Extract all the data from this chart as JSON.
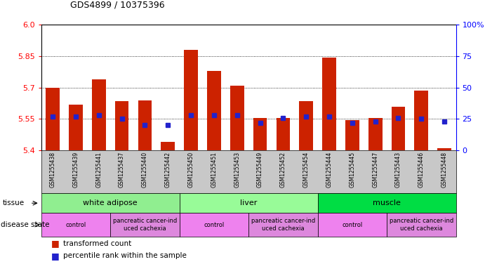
{
  "title": "GDS4899 / 10375396",
  "samples": [
    "GSM1255438",
    "GSM1255439",
    "GSM1255441",
    "GSM1255437",
    "GSM1255440",
    "GSM1255442",
    "GSM1255450",
    "GSM1255451",
    "GSM1255453",
    "GSM1255449",
    "GSM1255452",
    "GSM1255454",
    "GSM1255444",
    "GSM1255445",
    "GSM1255447",
    "GSM1255443",
    "GSM1255446",
    "GSM1255448"
  ],
  "red_values": [
    5.7,
    5.62,
    5.74,
    5.635,
    5.64,
    5.44,
    5.88,
    5.78,
    5.71,
    5.555,
    5.555,
    5.635,
    5.845,
    5.545,
    5.555,
    5.61,
    5.685,
    5.41
  ],
  "blue_values": [
    27,
    27,
    28,
    25,
    20,
    20,
    28,
    28,
    28,
    22,
    26,
    27,
    27,
    22,
    23,
    26,
    25,
    23
  ],
  "ylim_left": [
    5.4,
    6.0
  ],
  "ylim_right": [
    0,
    100
  ],
  "yticks_left": [
    5.4,
    5.55,
    5.7,
    5.85,
    6.0
  ],
  "yticks_right": [
    0,
    25,
    50,
    75,
    100
  ],
  "hlines": [
    5.55,
    5.7,
    5.85
  ],
  "tissue_groups": [
    {
      "label": "white adipose",
      "start": 0,
      "end": 6,
      "color": "#90EE90"
    },
    {
      "label": "liver",
      "start": 6,
      "end": 12,
      "color": "#98FB98"
    },
    {
      "label": "muscle",
      "start": 12,
      "end": 18,
      "color": "#00DD44"
    }
  ],
  "disease_groups": [
    {
      "label": "control",
      "start": 0,
      "end": 3,
      "color": "#EE82EE"
    },
    {
      "label": "pancreatic cancer-ind\nuced cachexia",
      "start": 3,
      "end": 6,
      "color": "#DD88DD"
    },
    {
      "label": "control",
      "start": 6,
      "end": 9,
      "color": "#EE82EE"
    },
    {
      "label": "pancreatic cancer-ind\nuced cachexia",
      "start": 9,
      "end": 12,
      "color": "#DD88DD"
    },
    {
      "label": "control",
      "start": 12,
      "end": 15,
      "color": "#EE82EE"
    },
    {
      "label": "pancreatic cancer-ind\nuced cachexia",
      "start": 15,
      "end": 18,
      "color": "#DD88DD"
    }
  ],
  "bar_color": "#CC2200",
  "dot_color": "#2222CC",
  "bar_width": 0.6,
  "background_color": "#FFFFFF",
  "label_tissue": "tissue",
  "label_disease": "disease state",
  "legend_red": "transformed count",
  "legend_blue": "percentile rank within the sample"
}
